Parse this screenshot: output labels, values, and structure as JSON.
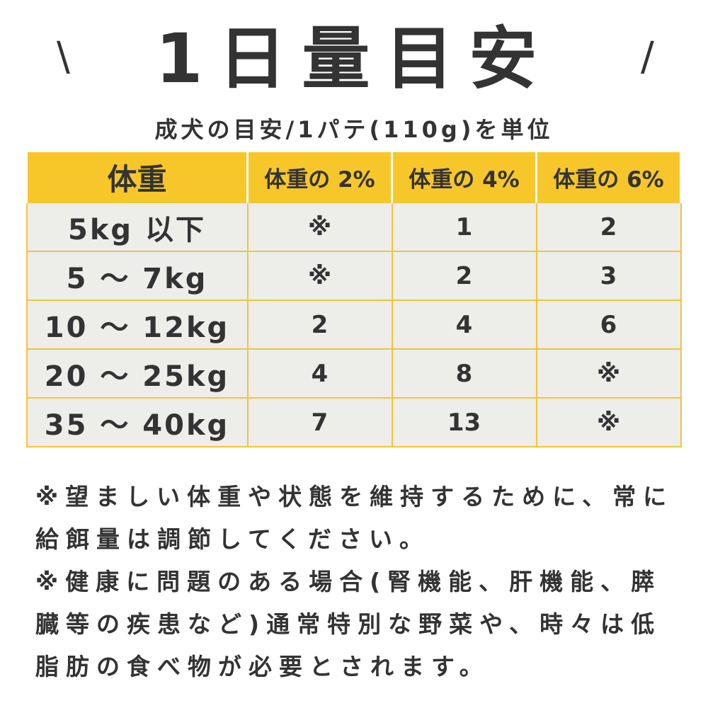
{
  "title": "1日量目安",
  "decor": {
    "left": "\\",
    "right": "/"
  },
  "subtitle": "成犬の目安/1パテ(110g)を単位",
  "table": {
    "headers": [
      "体重",
      "体重の 2%",
      "体重の 4%",
      "体重の 6%"
    ],
    "rows": [
      [
        "5kg 以下",
        "※",
        "1",
        "2"
      ],
      [
        "5 〜 7kg",
        "※",
        "2",
        "3"
      ],
      [
        "10 〜 12kg",
        "2",
        "4",
        "6"
      ],
      [
        "20 〜 25kg",
        "4",
        "8",
        "※"
      ],
      [
        "35 〜 40kg",
        "7",
        "13",
        "※"
      ]
    ]
  },
  "notes": [
    "※望ましい体重や状態を維持するために、常に",
    "給餌量は調節してください。",
    "※健康に問題のある場合(腎機能、肝機能、膵",
    "臓等の疾患など)通常特別な野菜や、時々は低",
    "脂肪の食べ物が必要とされます。"
  ],
  "colors": {
    "header": "#f7c62a",
    "cell": "#ededea",
    "border": "#f3c53a",
    "text": "#333333"
  }
}
